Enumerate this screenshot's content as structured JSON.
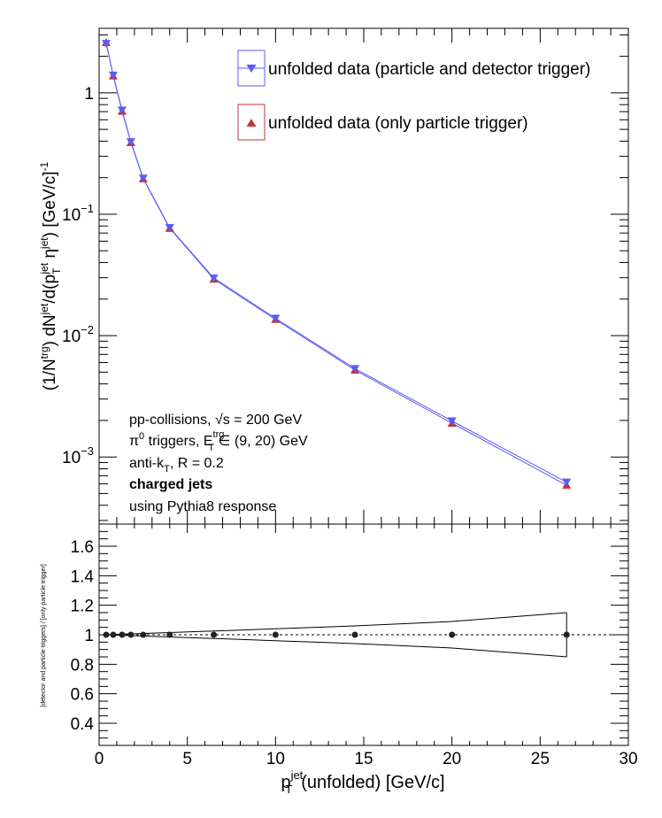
{
  "chart_data": [
    {
      "type": "scatter",
      "panel": "top",
      "ylabel_parts": {
        "p1": "(1/N",
        "sup_trg": "trg",
        "p2": ") dN",
        "sup_jet1": "jet",
        "p3": "/d(p",
        "sub_T": "T",
        "sup_jet2": "jet",
        "p4": " η",
        "sup_jet3": "jet",
        "p5": ") [GeV/c]",
        "sup_m1": "-1"
      },
      "ylog": true,
      "ylim": [
        0.00028,
        3.4
      ],
      "xlim": [
        0,
        30
      ],
      "y_tick_labels": [
        {
          "base": "1",
          "exp": ""
        },
        {
          "base": "10",
          "exp": "−1"
        },
        {
          "base": "10",
          "exp": "−2"
        },
        {
          "base": "10",
          "exp": "−3"
        }
      ],
      "series": [
        {
          "name": "unfolded data (particle and detector trigger)",
          "color": "#5b5bf5",
          "marker": "triangle-down",
          "x": [
            0.4,
            0.8,
            1.3,
            1.8,
            2.5,
            4.0,
            6.5,
            10.0,
            14.5,
            20.0,
            26.5
          ],
          "y": [
            2.55,
            1.4,
            0.72,
            0.395,
            0.198,
            0.0775,
            0.0298,
            0.0139,
            0.00535,
            0.00198,
            0.00062
          ]
        },
        {
          "name": "unfolded data (only particle trigger)",
          "color": "#c83232",
          "marker": "triangle-up",
          "x": [
            0.4,
            0.8,
            1.3,
            1.8,
            2.5,
            4.0,
            6.5,
            10.0,
            14.5,
            20.0,
            26.5
          ],
          "y": [
            2.6,
            1.38,
            0.705,
            0.39,
            0.196,
            0.0765,
            0.0292,
            0.0136,
            0.0052,
            0.0019,
            0.000585
          ]
        }
      ],
      "annotations": {
        "line1_pre": "pp-collisions, ",
        "line1_sqrt": "√s",
        "line1_post": " = 200 GeV",
        "line2_pi": "π",
        "line2_pi_sup": "0",
        "line2_mid": " triggers, E",
        "line2_sup": "trg",
        "line2_sub": "T",
        "line2_post": " ∈ (9, 20) GeV",
        "line3_pre": "anti-k",
        "line3_sub": "T",
        "line3_post": ", R = 0.2",
        "line4": "charged jets",
        "line5": "using Pythia8 response"
      },
      "legend_position": "top-right"
    },
    {
      "type": "scatter",
      "panel": "bottom",
      "ylabel": "[detector and particle triggers] / [only particle trigger]",
      "ylim": [
        0.25,
        1.75
      ],
      "y_ticks": [
        0.4,
        0.6,
        0.8,
        1.0,
        1.2,
        1.4,
        1.6
      ],
      "y_tick_labels": [
        "0.4",
        "0.6",
        "0.8",
        "1",
        "1.2",
        "1.4",
        "1.6"
      ],
      "xlim": [
        0,
        30
      ],
      "x_ticks": [
        0,
        5,
        10,
        15,
        20,
        25,
        30
      ],
      "x_tick_labels": [
        "0",
        "5",
        "10",
        "15",
        "20",
        "25",
        "30"
      ],
      "xlabel_parts": {
        "p": "p",
        "sup": "jet",
        "sub": "T",
        "post": "(unfolded) [GeV/c]"
      },
      "reference_line": 1.0,
      "ratio": {
        "x": [
          0.4,
          0.8,
          1.3,
          1.8,
          2.5,
          4.0,
          6.5,
          10.0,
          14.5,
          20.0,
          26.5
        ],
        "y": [
          1,
          1,
          1,
          1,
          1,
          1,
          1,
          1,
          1,
          1,
          1
        ]
      },
      "band": {
        "x": [
          0.4,
          4.0,
          6.5,
          10.0,
          14.5,
          20.0,
          26.5
        ],
        "upper": [
          1.0,
          1.015,
          1.025,
          1.04,
          1.06,
          1.09,
          1.15
        ],
        "lower": [
          1.0,
          0.985,
          0.975,
          0.96,
          0.94,
          0.91,
          0.85
        ]
      }
    }
  ]
}
